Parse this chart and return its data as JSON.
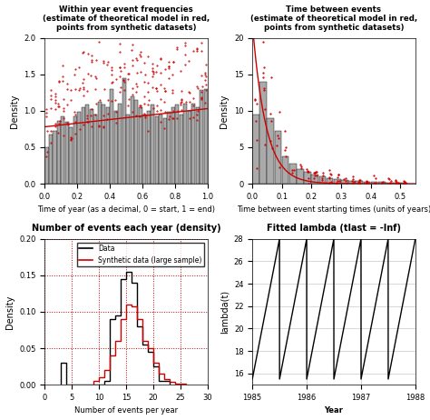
{
  "fig_width": 4.74,
  "fig_height": 4.62,
  "dpi": 100,
  "background_color": "#ffffff",
  "top_left": {
    "title": "Within year event frequencies\n(estimate of theoretical model in red,\npoints from synthetic datasets)",
    "xlabel": "Time of year (as a decimal, 0 = start, 1 = end)",
    "ylabel": "Density",
    "xlim": [
      0.0,
      1.0
    ],
    "ylim": [
      0.0,
      2.0
    ],
    "yticks": [
      0.0,
      0.5,
      1.0,
      1.5,
      2.0
    ],
    "xticks": [
      0.0,
      0.2,
      0.4,
      0.6,
      0.8,
      1.0
    ],
    "bar_color": "#aaaaaa",
    "bar_edge_color": "#000000",
    "bar_heights": [
      0.5,
      0.68,
      0.72,
      0.86,
      0.92,
      0.85,
      0.78,
      0.92,
      0.98,
      1.05,
      1.08,
      1.02,
      0.95,
      1.12,
      1.08,
      1.05,
      1.3,
      1.0,
      1.1,
      1.45,
      0.95,
      1.2,
      1.15,
      1.05,
      0.95,
      1.0,
      1.08,
      0.92,
      0.95,
      0.9,
      0.98,
      1.05,
      1.08,
      0.95,
      1.1,
      1.0,
      1.1,
      1.05,
      1.28,
      1.3
    ],
    "n_bars": 40,
    "red_line_y_base": 0.78,
    "red_line_y_slope": 0.3,
    "red_color": "#cc0000",
    "scatter_pts_per_bar": 5
  },
  "top_right": {
    "title": "Time between events\n(estimate of theoretical model in red,\npoints from synthetic datasets)",
    "xlabel": "Time between event starting times (units of years)",
    "ylabel": "Density",
    "xlim": [
      0.0,
      0.55
    ],
    "ylim": [
      0.0,
      20.0
    ],
    "yticks": [
      0,
      5,
      10,
      15,
      20
    ],
    "xticks": [
      0.0,
      0.1,
      0.2,
      0.3,
      0.4,
      0.5
    ],
    "bar_color": "#aaaaaa",
    "bar_edge_color": "#000000",
    "bar_heights_x": [
      0.0,
      0.025,
      0.05,
      0.075,
      0.1,
      0.125,
      0.15,
      0.175,
      0.2,
      0.225,
      0.25,
      0.275,
      0.3,
      0.325,
      0.35,
      0.375,
      0.4,
      0.425,
      0.45,
      0.475,
      0.5
    ],
    "bar_heights_y": [
      9.5,
      14.0,
      9.0,
      7.2,
      3.8,
      2.8,
      2.0,
      1.6,
      1.2,
      1.0,
      0.8,
      0.6,
      0.5,
      0.4,
      0.35,
      0.3,
      0.25,
      0.2,
      0.18,
      0.15,
      0.12
    ],
    "red_decay_rate": 22.0,
    "red_color": "#cc0000"
  },
  "bottom_left": {
    "title": "Number of events each year (density)",
    "xlabel": "Number of events per year",
    "ylabel": "Density",
    "xlim": [
      0,
      30
    ],
    "ylim": [
      0.0,
      0.2
    ],
    "yticks": [
      0.0,
      0.05,
      0.1,
      0.15,
      0.2
    ],
    "xticks": [
      0,
      5,
      10,
      15,
      20,
      25,
      30
    ],
    "grid": true,
    "grid_color": "#cc0000",
    "grid_style": ":",
    "black_hist_edges": [
      3,
      4,
      11,
      12,
      13,
      14,
      15,
      16,
      17,
      18,
      19,
      20,
      21,
      22,
      23
    ],
    "black_hist_vals": [
      0.03,
      0.0,
      0.005,
      0.09,
      0.095,
      0.145,
      0.155,
      0.14,
      0.08,
      0.055,
      0.045,
      0.025,
      0.005,
      0.005
    ],
    "red_hist_edges": [
      9,
      10,
      11,
      12,
      13,
      14,
      15,
      16,
      17,
      18,
      19,
      20,
      21,
      22,
      23,
      24,
      25,
      26
    ],
    "red_hist_vals": [
      0.005,
      0.01,
      0.02,
      0.04,
      0.06,
      0.09,
      0.11,
      0.108,
      0.09,
      0.06,
      0.05,
      0.03,
      0.015,
      0.008,
      0.004,
      0.002,
      0.001
    ],
    "black_color": "#000000",
    "red_color": "#cc0000"
  },
  "bottom_right": {
    "title": "Fitted lambda (tlast = -Inf)",
    "xlabel": "Year",
    "ylabel": "lambda(t)",
    "xlim": [
      1985.0,
      1988.0
    ],
    "ylim": [
      15,
      28
    ],
    "yticks": [
      16,
      18,
      20,
      22,
      24,
      26,
      28
    ],
    "xticks": [
      1985.0,
      1986.0,
      1987.0,
      1988.0
    ],
    "grid": true,
    "grid_color": "#c8c8c8",
    "line_color": "#000000",
    "sawtooth_x": [
      1985.0,
      1985.5,
      1985.501,
      1986.0,
      1986.001,
      1986.5,
      1986.501,
      1987.0,
      1987.001,
      1987.5,
      1987.501,
      1988.0
    ],
    "sawtooth_y": [
      15.5,
      28.0,
      15.5,
      28.0,
      15.5,
      28.0,
      15.5,
      28.0,
      15.5,
      28.0,
      15.5,
      28.0
    ]
  }
}
